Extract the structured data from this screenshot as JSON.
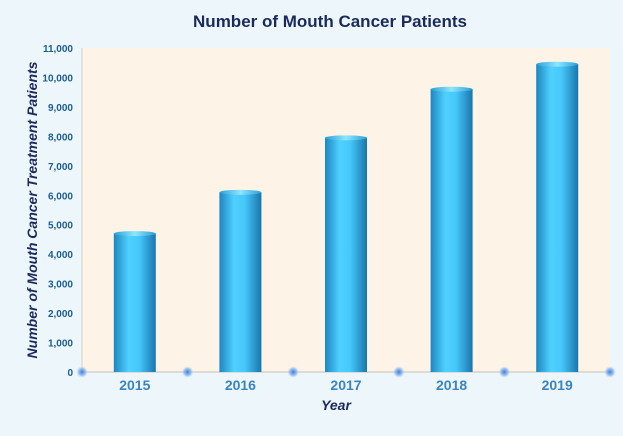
{
  "chart_data": {
    "type": "bar",
    "title": "Number of Mouth Cancer Patients",
    "xlabel": "Year",
    "ylabel": "Number of Mouth Cancer Treatment  Patients",
    "categories": [
      "2015",
      "2016",
      "2017",
      "2018",
      "2019"
    ],
    "values": [
      4700,
      6100,
      7950,
      9600,
      10450
    ],
    "ylim": [
      0,
      11000
    ],
    "yticks": [
      "0",
      "1,000",
      "2,000",
      "3,000",
      "4,000",
      "5,000",
      "6,000",
      "7,000",
      "8,000",
      "9,000",
      "10,000",
      "11,000"
    ],
    "grid": false,
    "legend": "none"
  },
  "colors": {
    "page_background": "#ecf6fb",
    "plot_background": "#fdf3e6",
    "bar_light": "#5fd3ff",
    "bar_mid": "#2bb6ef",
    "bar_dark": "#1c7fb6",
    "axis_marker": "#6fa3e2",
    "title": "#1b2a5c"
  }
}
